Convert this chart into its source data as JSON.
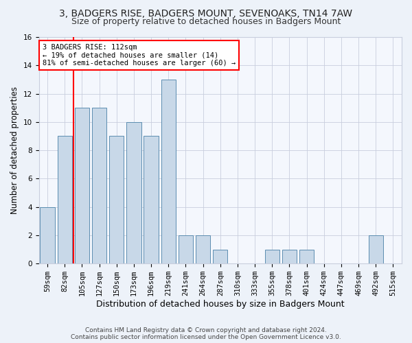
{
  "title": "3, BADGERS RISE, BADGERS MOUNT, SEVENOAKS, TN14 7AW",
  "subtitle": "Size of property relative to detached houses in Badgers Mount",
  "xlabel": "Distribution of detached houses by size in Badgers Mount",
  "ylabel": "Number of detached properties",
  "categories": [
    "59sqm",
    "82sqm",
    "105sqm",
    "127sqm",
    "150sqm",
    "173sqm",
    "196sqm",
    "219sqm",
    "241sqm",
    "264sqm",
    "287sqm",
    "310sqm",
    "333sqm",
    "355sqm",
    "378sqm",
    "401sqm",
    "424sqm",
    "447sqm",
    "469sqm",
    "492sqm",
    "515sqm"
  ],
  "values": [
    4,
    9,
    11,
    11,
    9,
    10,
    9,
    13,
    2,
    2,
    1,
    0,
    0,
    1,
    1,
    1,
    0,
    0,
    0,
    2,
    0
  ],
  "bar_color": "#c8d8e8",
  "bar_edge_color": "#5b8db0",
  "red_line_x": 1.5,
  "annotation_box_text": "3 BADGERS RISE: 112sqm\n← 19% of detached houses are smaller (14)\n81% of semi-detached houses are larger (60) →",
  "annotation_box_color": "white",
  "annotation_box_edge_color": "red",
  "red_line_color": "red",
  "ylim": [
    0,
    16
  ],
  "yticks": [
    0,
    2,
    4,
    6,
    8,
    10,
    12,
    14,
    16
  ],
  "footer": "Contains HM Land Registry data © Crown copyright and database right 2024.\nContains public sector information licensed under the Open Government Licence v3.0.",
  "bg_color": "#edf2f9",
  "plot_bg_color": "#f4f7fd",
  "grid_color": "#c8cedd",
  "title_fontsize": 10,
  "subtitle_fontsize": 9,
  "xlabel_fontsize": 9,
  "ylabel_fontsize": 8.5,
  "tick_fontsize": 7.5,
  "footer_fontsize": 6.5
}
